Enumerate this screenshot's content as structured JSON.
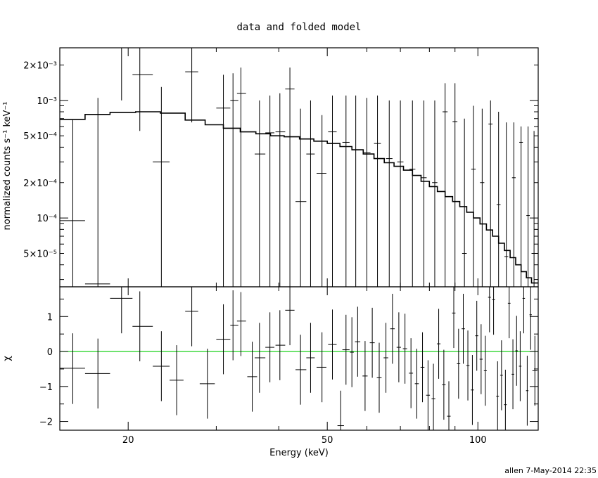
{
  "chart_data": [
    {
      "panel": "top",
      "type": "step+errorbar",
      "title": "data and folded model",
      "ylabel": "normalized counts s⁻¹ keV⁻¹",
      "xscale": "log",
      "yscale": "log",
      "xlim": [
        14.6,
        132
      ],
      "ylim": [
        2.6e-05,
        0.0028
      ],
      "y_tick_labels": [
        {
          "value": 5e-05,
          "label": "5×10⁻⁵"
        },
        {
          "value": 0.0001,
          "label": "10⁻⁴"
        },
        {
          "value": 0.0002,
          "label": "2×10⁻⁴"
        },
        {
          "value": 0.0005,
          "label": "5×10⁻⁴"
        },
        {
          "value": 0.001,
          "label": "10⁻³"
        },
        {
          "value": 0.002,
          "label": "2×10⁻³"
        }
      ],
      "model_steps": {
        "edges": [
          14.6,
          16.4,
          18.4,
          20.7,
          23.2,
          26,
          28.5,
          31,
          33.5,
          36,
          38.5,
          41,
          44,
          47,
          50,
          53,
          56,
          59,
          62,
          65,
          68,
          71,
          74,
          77,
          80,
          83,
          86,
          89,
          92,
          95,
          98,
          101,
          104,
          107,
          110,
          113,
          116,
          119,
          122,
          125,
          128,
          132
        ],
        "values": [
          0.00069,
          0.00076,
          0.00079,
          0.0008,
          0.00078,
          0.00068,
          0.00062,
          0.00058,
          0.00054,
          0.00052,
          0.0005,
          0.00049,
          0.00047,
          0.00045,
          0.00043,
          0.000405,
          0.00038,
          0.00035,
          0.00032,
          0.000295,
          0.000275,
          0.000255,
          0.00023,
          0.000205,
          0.000185,
          0.000168,
          0.000152,
          0.000138,
          0.000125,
          0.000112,
          0.0001,
          8.9e-05,
          7.9e-05,
          7e-05,
          6.1e-05,
          5.3e-05,
          4.6e-05,
          4e-05,
          3.5e-05,
          3.1e-05,
          2.8e-05
        ]
      },
      "data_points": [
        {
          "x": 15.5,
          "xlo": 14.6,
          "xhi": 16.4,
          "y": 9.5e-05,
          "ylo": 2.6e-05,
          "yhi": 0.00068
        },
        {
          "x": 17.4,
          "xlo": 16.4,
          "xhi": 18.4,
          "y": 2.75e-05,
          "ylo": 2.6e-05,
          "yhi": 0.00105
        },
        {
          "x": 19.4,
          "xlo": 18.4,
          "xhi": 20.4,
          "y": 0.0028,
          "ylo": 0.001,
          "yhi": 0.0028
        },
        {
          "x": 21.1,
          "xlo": 20.4,
          "xhi": 22.4,
          "y": 0.00165,
          "ylo": 0.00055,
          "yhi": 0.0028
        },
        {
          "x": 23.3,
          "xlo": 22.4,
          "xhi": 24.2,
          "y": 0.0003,
          "ylo": 2.6e-05,
          "yhi": 0.0013
        },
        {
          "x": 26.8,
          "xlo": 26.0,
          "xhi": 27.6,
          "y": 0.00175,
          "ylo": 0.00065,
          "yhi": 0.0028
        },
        {
          "x": 31.0,
          "xlo": 30.0,
          "xhi": 32.0,
          "y": 0.00086,
          "ylo": 2.6e-05,
          "yhi": 0.00165
        },
        {
          "x": 32.4,
          "xlo": 32.0,
          "xhi": 33.2,
          "y": 0.001,
          "ylo": 2.6e-05,
          "yhi": 0.0017
        },
        {
          "x": 33.6,
          "xlo": 33.0,
          "xhi": 34.4,
          "y": 0.00115,
          "ylo": 2.6e-05,
          "yhi": 0.0019
        },
        {
          "x": 36.6,
          "xlo": 35.8,
          "xhi": 37.6,
          "y": 0.00035,
          "ylo": 2.6e-05,
          "yhi": 0.001
        },
        {
          "x": 38.4,
          "xlo": 37.6,
          "xhi": 39.2,
          "y": 0.00053,
          "ylo": 2.6e-05,
          "yhi": 0.0011
        },
        {
          "x": 40.2,
          "xlo": 39.4,
          "xhi": 41.2,
          "y": 0.00054,
          "ylo": 2.6e-05,
          "yhi": 0.00115
        },
        {
          "x": 42.1,
          "xlo": 41.2,
          "xhi": 43.0,
          "y": 0.00125,
          "ylo": 2.6e-05,
          "yhi": 0.0019
        },
        {
          "x": 44.2,
          "xlo": 43.2,
          "xhi": 45.4,
          "y": 0.000138,
          "ylo": 2.6e-05,
          "yhi": 0.00085
        },
        {
          "x": 46.3,
          "xlo": 45.4,
          "xhi": 47.2,
          "y": 0.00035,
          "ylo": 2.6e-05,
          "yhi": 0.001
        },
        {
          "x": 48.8,
          "xlo": 47.6,
          "xhi": 49.8,
          "y": 0.00024,
          "ylo": 2.6e-05,
          "yhi": 0.00075
        },
        {
          "x": 51.2,
          "xlo": 50.2,
          "xhi": 52.2,
          "y": 0.00054,
          "ylo": 2.6e-05,
          "yhi": 0.0011
        },
        {
          "x": 54.5,
          "xlo": 53.6,
          "xhi": 55.4,
          "y": 0.00044,
          "ylo": 2.6e-05,
          "yhi": 0.0011
        },
        {
          "x": 57.0,
          "xlo": 56.0,
          "xhi": 58.0,
          "y": 0.00038,
          "ylo": 2.6e-05,
          "yhi": 0.0011
        },
        {
          "x": 60.0,
          "xlo": 59.0,
          "xhi": 61.0,
          "y": 0.00036,
          "ylo": 2.6e-05,
          "yhi": 0.00105
        },
        {
          "x": 63.0,
          "xlo": 62.0,
          "xhi": 64.0,
          "y": 0.00043,
          "ylo": 2.6e-05,
          "yhi": 0.0011
        },
        {
          "x": 66.5,
          "xlo": 65.5,
          "xhi": 67.5,
          "y": 0.00032,
          "ylo": 2.6e-05,
          "yhi": 0.001
        },
        {
          "x": 70.0,
          "xlo": 69.0,
          "xhi": 71.0,
          "y": 0.0003,
          "ylo": 2.6e-05,
          "yhi": 0.001
        },
        {
          "x": 74.0,
          "xlo": 73.0,
          "xhi": 75.0,
          "y": 0.00026,
          "ylo": 2.6e-05,
          "yhi": 0.001
        },
        {
          "x": 78.0,
          "xlo": 77.0,
          "xhi": 79.0,
          "y": 0.00022,
          "ylo": 2.6e-05,
          "yhi": 0.001
        },
        {
          "x": 82.0,
          "xlo": 81.0,
          "xhi": 83.0,
          "y": 0.0002,
          "ylo": 2.6e-05,
          "yhi": 0.001
        },
        {
          "x": 86.0,
          "xlo": 85.0,
          "xhi": 87.0,
          "y": 0.0008,
          "ylo": 2.6e-05,
          "yhi": 0.0014
        },
        {
          "x": 90.0,
          "xlo": 89.0,
          "xhi": 91.0,
          "y": 0.00066,
          "ylo": 2.6e-05,
          "yhi": 0.0014
        },
        {
          "x": 94.0,
          "xlo": 93.0,
          "xhi": 95.0,
          "y": 5e-05,
          "ylo": 2.6e-05,
          "yhi": 0.0007
        },
        {
          "x": 98.0,
          "xlo": 97.0,
          "xhi": 99.0,
          "y": 0.00026,
          "ylo": 2.6e-05,
          "yhi": 0.0009
        },
        {
          "x": 102.0,
          "xlo": 101.0,
          "xhi": 103.0,
          "y": 0.0002,
          "ylo": 2.6e-05,
          "yhi": 0.00085
        },
        {
          "x": 106.0,
          "xlo": 105.0,
          "xhi": 107.0,
          "y": 0.00063,
          "ylo": 2.6e-05,
          "yhi": 0.001
        },
        {
          "x": 110.0,
          "xlo": 109.0,
          "xhi": 111.0,
          "y": 0.00013,
          "ylo": 2.6e-05,
          "yhi": 0.0008
        },
        {
          "x": 114.0,
          "xlo": 113.0,
          "xhi": 115.0,
          "y": 4.7e-05,
          "ylo": 2.6e-05,
          "yhi": 0.00065
        },
        {
          "x": 118.0,
          "xlo": 117.0,
          "xhi": 119.0,
          "y": 0.00022,
          "ylo": 2.6e-05,
          "yhi": 0.00065
        },
        {
          "x": 122.0,
          "xlo": 121.0,
          "xhi": 123.0,
          "y": 0.00044,
          "ylo": 2.6e-05,
          "yhi": 0.0006
        },
        {
          "x": 126.0,
          "xlo": 125.0,
          "xhi": 127.0,
          "y": 0.000105,
          "ylo": 2.6e-05,
          "yhi": 0.0006
        },
        {
          "x": 129.5,
          "xlo": 128.0,
          "xhi": 131.0,
          "y": 5e-05,
          "ylo": 2.6e-05,
          "yhi": 0.00055
        }
      ]
    },
    {
      "panel": "bottom",
      "type": "errorbar",
      "ylabel": "χ",
      "xlabel": "Energy (keV)",
      "xscale": "log",
      "yscale": "linear",
      "xlim": [
        14.6,
        132
      ],
      "ylim": [
        -2.25,
        1.85
      ],
      "y_tick_labels": [
        {
          "value": 1,
          "label": "1"
        },
        {
          "value": 0,
          "label": "0"
        },
        {
          "value": -1,
          "label": "−1"
        },
        {
          "value": -2,
          "label": "−2"
        }
      ],
      "x_tick_labels": [
        {
          "value": 20,
          "label": "20"
        },
        {
          "value": 50,
          "label": "50"
        },
        {
          "value": 100,
          "label": "100"
        }
      ],
      "zero_line_color": "#00cc00",
      "data_points": [
        {
          "x": 15.5,
          "xlo": 14.6,
          "xhi": 16.4,
          "y": -0.48,
          "ylo": -1.5,
          "yhi": 0.52
        },
        {
          "x": 17.4,
          "xlo": 16.4,
          "xhi": 18.4,
          "y": -0.63,
          "ylo": -1.63,
          "yhi": 0.37
        },
        {
          "x": 19.4,
          "xlo": 18.4,
          "xhi": 20.4,
          "y": 1.52,
          "ylo": 0.52,
          "yhi": 1.85
        },
        {
          "x": 21.1,
          "xlo": 20.4,
          "xhi": 22.4,
          "y": 0.72,
          "ylo": -0.28,
          "yhi": 1.72
        },
        {
          "x": 23.3,
          "xlo": 22.4,
          "xhi": 24.2,
          "y": -0.42,
          "ylo": -1.42,
          "yhi": 0.58
        },
        {
          "x": 25.0,
          "xlo": 24.2,
          "xhi": 25.8,
          "y": -0.82,
          "ylo": -1.82,
          "yhi": 0.18
        },
        {
          "x": 26.8,
          "xlo": 26.0,
          "xhi": 27.6,
          "y": 1.15,
          "ylo": 0.15,
          "yhi": 1.85
        },
        {
          "x": 28.8,
          "xlo": 27.8,
          "xhi": 29.8,
          "y": -0.92,
          "ylo": -1.92,
          "yhi": 0.08
        },
        {
          "x": 31.0,
          "xlo": 30.0,
          "xhi": 32.0,
          "y": 0.35,
          "ylo": -0.65,
          "yhi": 1.35
        },
        {
          "x": 32.4,
          "xlo": 32.0,
          "xhi": 33.2,
          "y": 0.75,
          "ylo": -0.25,
          "yhi": 1.75
        },
        {
          "x": 33.6,
          "xlo": 33.0,
          "xhi": 34.4,
          "y": 0.87,
          "ylo": -0.13,
          "yhi": 1.7
        },
        {
          "x": 35.4,
          "xlo": 34.6,
          "xhi": 36.2,
          "y": -0.72,
          "ylo": -1.72,
          "yhi": 0.28
        },
        {
          "x": 36.6,
          "xlo": 35.8,
          "xhi": 37.6,
          "y": -0.18,
          "ylo": -1.18,
          "yhi": 0.82
        },
        {
          "x": 38.4,
          "xlo": 37.6,
          "xhi": 39.2,
          "y": 0.12,
          "ylo": -0.88,
          "yhi": 1.12
        },
        {
          "x": 40.2,
          "xlo": 39.4,
          "xhi": 41.2,
          "y": 0.18,
          "ylo": -0.82,
          "yhi": 1.18
        },
        {
          "x": 42.1,
          "xlo": 41.2,
          "xhi": 43.0,
          "y": 1.18,
          "ylo": 0.18,
          "yhi": 1.85
        },
        {
          "x": 44.2,
          "xlo": 43.2,
          "xhi": 45.4,
          "y": -0.52,
          "ylo": -1.52,
          "yhi": 0.48
        },
        {
          "x": 46.3,
          "xlo": 45.4,
          "xhi": 47.2,
          "y": -0.18,
          "ylo": -1.18,
          "yhi": 0.82
        },
        {
          "x": 48.8,
          "xlo": 47.6,
          "xhi": 49.8,
          "y": -0.45,
          "ylo": -1.45,
          "yhi": 0.55
        },
        {
          "x": 51.2,
          "xlo": 50.2,
          "xhi": 52.2,
          "y": 0.2,
          "ylo": -0.8,
          "yhi": 1.2
        },
        {
          "x": 53.2,
          "xlo": 52.4,
          "xhi": 54.0,
          "y": -2.12,
          "ylo": -2.25,
          "yhi": -1.12
        },
        {
          "x": 54.5,
          "xlo": 53.6,
          "xhi": 55.4,
          "y": 0.05,
          "ylo": -0.95,
          "yhi": 1.05
        },
        {
          "x": 56.0,
          "xlo": 55.5,
          "xhi": 56.5,
          "y": -0.02,
          "ylo": -1.02,
          "yhi": 0.98
        },
        {
          "x": 57.5,
          "xlo": 56.8,
          "xhi": 58.2,
          "y": 0.28,
          "ylo": -0.72,
          "yhi": 1.28
        },
        {
          "x": 59.5,
          "xlo": 58.8,
          "xhi": 60.2,
          "y": -0.7,
          "ylo": -1.7,
          "yhi": 0.3
        },
        {
          "x": 61.5,
          "xlo": 60.8,
          "xhi": 62.2,
          "y": 0.25,
          "ylo": -0.75,
          "yhi": 1.25
        },
        {
          "x": 63.5,
          "xlo": 62.8,
          "xhi": 64.2,
          "y": -0.75,
          "ylo": -1.75,
          "yhi": 0.25
        },
        {
          "x": 65.5,
          "xlo": 64.8,
          "xhi": 66.2,
          "y": -0.18,
          "ylo": -1.18,
          "yhi": 0.82
        },
        {
          "x": 67.5,
          "xlo": 66.8,
          "xhi": 68.2,
          "y": 0.65,
          "ylo": -0.35,
          "yhi": 1.65
        },
        {
          "x": 69.5,
          "xlo": 68.8,
          "xhi": 70.2,
          "y": 0.12,
          "ylo": -0.88,
          "yhi": 1.12
        },
        {
          "x": 71.5,
          "xlo": 70.8,
          "xhi": 72.2,
          "y": 0.08,
          "ylo": -0.92,
          "yhi": 1.08
        },
        {
          "x": 73.5,
          "xlo": 72.8,
          "xhi": 74.2,
          "y": -0.62,
          "ylo": -1.62,
          "yhi": 0.38
        },
        {
          "x": 75.5,
          "xlo": 74.8,
          "xhi": 76.2,
          "y": -0.92,
          "ylo": -1.92,
          "yhi": 0.08
        },
        {
          "x": 77.5,
          "xlo": 76.8,
          "xhi": 78.2,
          "y": -0.45,
          "ylo": -1.45,
          "yhi": 0.55
        },
        {
          "x": 79.5,
          "xlo": 78.8,
          "xhi": 80.2,
          "y": -1.25,
          "ylo": -2.25,
          "yhi": -0.25
        },
        {
          "x": 81.5,
          "xlo": 80.8,
          "xhi": 82.2,
          "y": -1.35,
          "ylo": -2.25,
          "yhi": -0.35
        },
        {
          "x": 83.5,
          "xlo": 82.8,
          "xhi": 84.2,
          "y": 0.22,
          "ylo": -0.78,
          "yhi": 1.22
        },
        {
          "x": 85.5,
          "xlo": 84.8,
          "xhi": 86.2,
          "y": -0.95,
          "ylo": -1.95,
          "yhi": 0.05
        },
        {
          "x": 87.5,
          "xlo": 86.8,
          "xhi": 88.2,
          "y": -1.85,
          "ylo": -2.25,
          "yhi": -0.85
        },
        {
          "x": 89.5,
          "xlo": 88.8,
          "xhi": 90.2,
          "y": 1.1,
          "ylo": 0.1,
          "yhi": 1.85
        },
        {
          "x": 91.5,
          "xlo": 90.8,
          "xhi": 92.2,
          "y": -0.35,
          "ylo": -1.35,
          "yhi": 0.65
        },
        {
          "x": 93.5,
          "xlo": 92.8,
          "xhi": 94.2,
          "y": 0.65,
          "ylo": -0.35,
          "yhi": 1.65
        },
        {
          "x": 95.5,
          "xlo": 94.8,
          "xhi": 96.2,
          "y": -0.4,
          "ylo": -1.4,
          "yhi": 0.6
        },
        {
          "x": 97.5,
          "xlo": 96.8,
          "xhi": 98.2,
          "y": -1.1,
          "ylo": -2.1,
          "yhi": -0.1
        },
        {
          "x": 99.5,
          "xlo": 98.8,
          "xhi": 100.2,
          "y": 0.45,
          "ylo": -0.55,
          "yhi": 1.45
        },
        {
          "x": 101.5,
          "xlo": 100.8,
          "xhi": 102.2,
          "y": -0.22,
          "ylo": -1.22,
          "yhi": 0.78
        },
        {
          "x": 103.5,
          "xlo": 102.8,
          "xhi": 104.2,
          "y": -0.55,
          "ylo": -1.55,
          "yhi": 0.45
        },
        {
          "x": 105.5,
          "xlo": 104.8,
          "xhi": 106.2,
          "y": 1.55,
          "ylo": 0.55,
          "yhi": 1.85
        },
        {
          "x": 107.5,
          "xlo": 106.8,
          "xhi": 108.2,
          "y": 1.48,
          "ylo": 0.48,
          "yhi": 1.85
        },
        {
          "x": 109.5,
          "xlo": 108.8,
          "xhi": 110.2,
          "y": -1.28,
          "ylo": -2.25,
          "yhi": -0.28
        },
        {
          "x": 111.5,
          "xlo": 110.8,
          "xhi": 112.2,
          "y": -0.68,
          "ylo": -1.68,
          "yhi": 0.32
        },
        {
          "x": 113.5,
          "xlo": 112.8,
          "xhi": 114.2,
          "y": -1.52,
          "ylo": -2.25,
          "yhi": -0.52
        },
        {
          "x": 115.5,
          "xlo": 114.8,
          "xhi": 116.2,
          "y": 1.38,
          "ylo": 0.38,
          "yhi": 1.85
        },
        {
          "x": 117.5,
          "xlo": 116.8,
          "xhi": 118.2,
          "y": -0.65,
          "ylo": -1.65,
          "yhi": 0.35
        },
        {
          "x": 119.5,
          "xlo": 118.8,
          "xhi": 120.2,
          "y": 0.02,
          "ylo": -0.98,
          "yhi": 1.02
        },
        {
          "x": 121.5,
          "xlo": 120.8,
          "xhi": 122.2,
          "y": -0.42,
          "ylo": -1.42,
          "yhi": 0.58
        },
        {
          "x": 123.5,
          "xlo": 122.8,
          "xhi": 124.2,
          "y": 1.52,
          "ylo": 0.52,
          "yhi": 1.85
        },
        {
          "x": 125.5,
          "xlo": 124.8,
          "xhi": 126.2,
          "y": -1.12,
          "ylo": -2.12,
          "yhi": -0.12
        },
        {
          "x": 127.5,
          "xlo": 126.8,
          "xhi": 128.2,
          "y": 1.05,
          "ylo": 0.05,
          "yhi": 1.85
        },
        {
          "x": 130.0,
          "xlo": 128.5,
          "xhi": 131.5,
          "y": -0.55,
          "ylo": -1.55,
          "yhi": 0.45
        }
      ]
    }
  ],
  "footer": {
    "credit": "allen  7-May-2014 22:35"
  }
}
